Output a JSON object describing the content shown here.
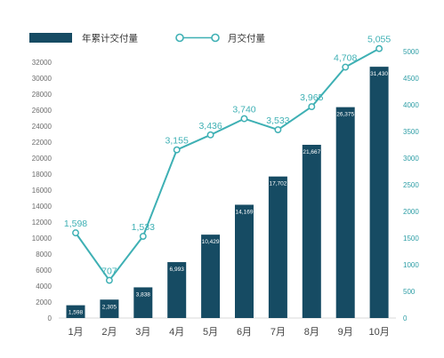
{
  "chart_data": {
    "type": "bar+line",
    "categories": [
      "1月",
      "2月",
      "3月",
      "4月",
      "5月",
      "6月",
      "7月",
      "8月",
      "9月",
      "10月"
    ],
    "series": [
      {
        "name": "年累计交付量",
        "type": "bar",
        "axis": "left",
        "values": [
          1598,
          2305,
          3838,
          6993,
          10429,
          14169,
          17702,
          21667,
          26375,
          31430
        ],
        "labels": [
          "1,598",
          "2,305",
          "3,838",
          "6,993",
          "10,429",
          "14,169",
          "17,702",
          "21,667",
          "26,375",
          "31,430"
        ]
      },
      {
        "name": "月交付量",
        "type": "line",
        "axis": "right",
        "values": [
          1598,
          707,
          1533,
          3155,
          3436,
          3740,
          3533,
          3965,
          4708,
          5055
        ],
        "labels": [
          "1,598",
          "707",
          "1,533",
          "3,155",
          "3,436",
          "3,740",
          "3,533",
          "3,965",
          "4,708",
          "5,055"
        ]
      }
    ],
    "left_axis": {
      "ylim": [
        0,
        32000
      ],
      "ticks": [
        "0",
        "2000",
        "4000",
        "6000",
        "8000",
        "10000",
        "12000",
        "14000",
        "16000",
        "18000",
        "20000",
        "22000",
        "24000",
        "26000",
        "28000",
        "30000",
        "32000"
      ]
    },
    "right_axis": {
      "ylim": [
        0,
        5000
      ],
      "ticks": [
        "0",
        "500",
        "1000",
        "1500",
        "2000",
        "2500",
        "3000",
        "3500",
        "4000",
        "4500",
        "5000"
      ]
    },
    "grid": false,
    "legend_position": "top",
    "colors": {
      "bar": "#164b63",
      "line": "#3eb0b4",
      "right_axis": "#2e9ea6"
    }
  }
}
